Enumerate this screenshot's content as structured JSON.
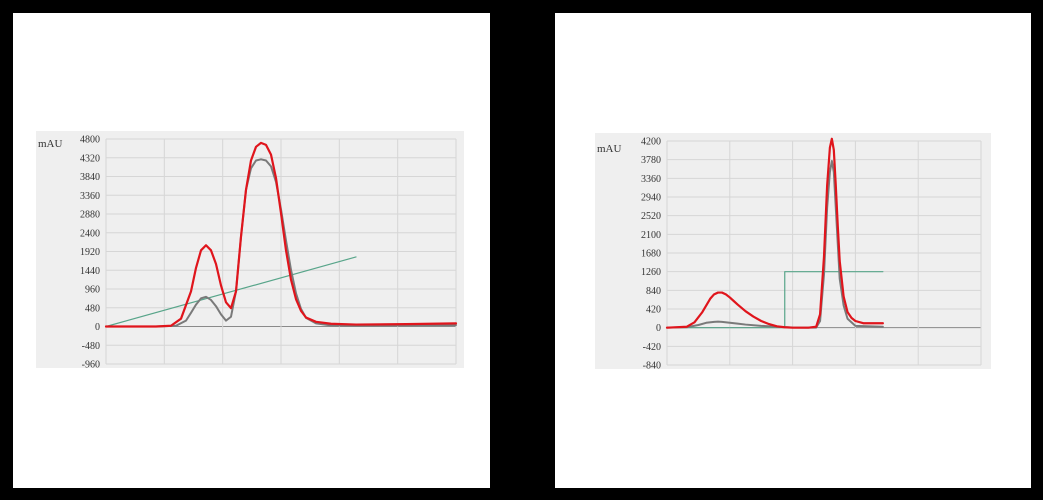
{
  "colors": {
    "frame": "#000000",
    "panel": "#ffffff",
    "plot_bg": "#efefef",
    "grid": "#d6d6d6",
    "zero_line": "#8a8a8a",
    "red": "#e0151c",
    "gray": "#7a7a7a",
    "green": "#58a58a"
  },
  "chart_data": [
    {
      "type": "line",
      "ylabel": "mAU",
      "ylim": [
        -960,
        4800
      ],
      "xlim": [
        0,
        70
      ],
      "yticks": [
        -960,
        -480,
        0,
        480,
        960,
        1440,
        1920,
        2400,
        2880,
        3360,
        3840,
        4320,
        4800
      ],
      "grid": true,
      "series": [
        {
          "color": "#e0151c",
          "x": [
            0,
            10,
            13,
            15,
            17,
            18,
            19,
            20,
            21,
            22,
            23,
            24,
            25,
            26,
            27,
            28,
            29,
            30,
            31,
            32,
            33,
            34,
            35,
            36,
            37,
            38,
            39,
            40,
            42,
            45,
            50,
            60,
            70
          ],
          "y": [
            0,
            0,
            20,
            200,
            900,
            1500,
            1950,
            2080,
            1950,
            1600,
            1050,
            620,
            470,
            900,
            2300,
            3500,
            4250,
            4600,
            4700,
            4650,
            4400,
            3800,
            2900,
            1950,
            1200,
            700,
            400,
            230,
            120,
            70,
            50,
            60,
            80
          ]
        },
        {
          "color": "#7a7a7a",
          "x": [
            0,
            10,
            14,
            16,
            17,
            18,
            19,
            20,
            21,
            22,
            23,
            24,
            25,
            26,
            27,
            28,
            29,
            30,
            31,
            32,
            33,
            34,
            35,
            36,
            37,
            38,
            39,
            40,
            42,
            45,
            50,
            60,
            70
          ],
          "y": [
            0,
            0,
            20,
            150,
            350,
            560,
            720,
            760,
            680,
            520,
            310,
            150,
            250,
            900,
            2300,
            3500,
            4050,
            4250,
            4280,
            4250,
            4100,
            3700,
            3000,
            2200,
            1450,
            850,
            450,
            220,
            80,
            30,
            20,
            30,
            40
          ]
        },
        {
          "color": "#58a58a",
          "x": [
            0,
            50
          ],
          "y": [
            0,
            1780
          ]
        }
      ]
    },
    {
      "type": "line",
      "ylabel": "mAU",
      "ylim": [
        -840,
        4200
      ],
      "xlim": [
        0,
        80
      ],
      "yticks": [
        -840,
        -420,
        0,
        420,
        840,
        1260,
        1680,
        2100,
        2520,
        2940,
        3360,
        3780,
        4200
      ],
      "grid": true,
      "series": [
        {
          "color": "#e0151c",
          "x": [
            0,
            5,
            7,
            9,
            11,
            12,
            13,
            14,
            15,
            16,
            17,
            18,
            20,
            22,
            24,
            26,
            28,
            30,
            32,
            34,
            36,
            38,
            39,
            40,
            40.8,
            41.5,
            42,
            42.5,
            43,
            43.5,
            44,
            45,
            46,
            47,
            48,
            50,
            55
          ],
          "y": [
            0,
            20,
            120,
            350,
            650,
            750,
            790,
            790,
            750,
            680,
            600,
            520,
            370,
            250,
            150,
            80,
            30,
            10,
            0,
            0,
            0,
            20,
            300,
            1600,
            3200,
            4050,
            4250,
            4000,
            3200,
            2300,
            1500,
            700,
            350,
            220,
            150,
            100,
            100
          ]
        },
        {
          "color": "#7a7a7a",
          "x": [
            0,
            5,
            8,
            10,
            12,
            13,
            14,
            16,
            18,
            20,
            24,
            28,
            32,
            36,
            38,
            39,
            40,
            40.8,
            41.5,
            42,
            42.5,
            43,
            43.5,
            44,
            45,
            46,
            48,
            55
          ],
          "y": [
            0,
            10,
            60,
            110,
            130,
            135,
            130,
            110,
            90,
            70,
            40,
            20,
            5,
            0,
            0,
            150,
            1200,
            2700,
            3500,
            3750,
            3500,
            2700,
            1900,
            1100,
            500,
            200,
            40,
            20
          ]
        },
        {
          "color": "#58a58a",
          "x": [
            0,
            30,
            30,
            55
          ],
          "y": [
            0,
            0,
            1260,
            1260
          ]
        }
      ]
    }
  ]
}
